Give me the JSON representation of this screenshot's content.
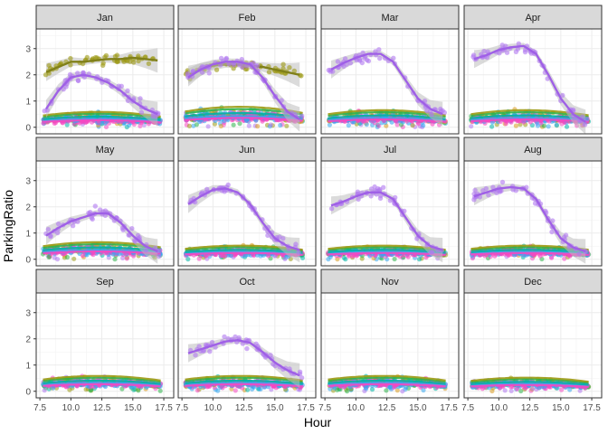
{
  "chart_data": {
    "type": "scatter",
    "subtype": "faceted scatter with loess smooth lines",
    "xlabel": "Hour",
    "ylabel": "ParkingRatio",
    "xlim": [
      7.2,
      18.3
    ],
    "ylim": [
      -0.25,
      3.75
    ],
    "x_ticks": [
      7.5,
      10.0,
      12.5,
      15.0,
      17.5
    ],
    "x_tick_labels": [
      "7.5",
      "10.0",
      "12.5",
      "15.0",
      "17.5"
    ],
    "y_ticks": [
      0,
      1,
      2,
      3
    ],
    "y_tick_labels": [
      "0",
      "1",
      "2",
      "3"
    ],
    "grid": true,
    "facets": [
      {
        "label": "Jan",
        "high": [
          {
            "series": "olive",
            "points": [
              [
                8,
                2.1
              ],
              [
                9,
                2.3
              ],
              [
                10,
                2.5
              ],
              [
                11,
                2.5
              ],
              [
                12,
                2.55
              ],
              [
                13,
                2.6
              ],
              [
                14,
                2.6
              ],
              [
                15,
                2.65
              ],
              [
                16,
                2.6
              ],
              [
                17,
                2.55
              ]
            ]
          },
          {
            "series": "purple",
            "points": [
              [
                8,
                0.7
              ],
              [
                9,
                1.4
              ],
              [
                10,
                1.9
              ],
              [
                11,
                2.0
              ],
              [
                12,
                1.9
              ],
              [
                13,
                1.7
              ],
              [
                14,
                1.4
              ],
              [
                15,
                1.0
              ],
              [
                16,
                0.7
              ],
              [
                17,
                0.5
              ]
            ]
          }
        ],
        "base_level": 0.45
      },
      {
        "label": "Feb",
        "high": [
          {
            "series": "olive",
            "points": [
              [
                8,
                2.0
              ],
              [
                9,
                2.2
              ],
              [
                10,
                2.35
              ],
              [
                11,
                2.4
              ],
              [
                12,
                2.4
              ],
              [
                13,
                2.35
              ],
              [
                14,
                2.3
              ],
              [
                15,
                2.2
              ],
              [
                16,
                2.1
              ],
              [
                17,
                2.0
              ]
            ]
          },
          {
            "series": "purple",
            "points": [
              [
                8,
                1.9
              ],
              [
                9,
                2.2
              ],
              [
                10,
                2.4
              ],
              [
                11,
                2.5
              ],
              [
                12,
                2.5
              ],
              [
                13,
                2.4
              ],
              [
                14,
                1.9
              ],
              [
                15,
                1.2
              ],
              [
                16,
                0.6
              ],
              [
                17,
                0.3
              ]
            ]
          }
        ],
        "base_level": 0.6
      },
      {
        "label": "Mar",
        "high": [
          {
            "series": "purple",
            "points": [
              [
                8,
                2.2
              ],
              [
                9,
                2.45
              ],
              [
                10,
                2.65
              ],
              [
                11,
                2.8
              ],
              [
                12,
                2.8
              ],
              [
                13,
                2.5
              ],
              [
                14,
                1.8
              ],
              [
                15,
                1.1
              ],
              [
                16,
                0.7
              ],
              [
                17,
                0.5
              ]
            ]
          }
        ],
        "base_level": 0.5
      },
      {
        "label": "Apr",
        "high": [
          {
            "series": "purple",
            "points": [
              [
                8,
                2.6
              ],
              [
                9,
                2.75
              ],
              [
                10,
                2.95
              ],
              [
                11,
                3.05
              ],
              [
                12,
                3.1
              ],
              [
                13,
                2.8
              ],
              [
                14,
                2.0
              ],
              [
                15,
                1.1
              ],
              [
                16,
                0.5
              ],
              [
                17,
                0.2
              ]
            ]
          }
        ],
        "base_level": 0.5
      },
      {
        "label": "May",
        "high": [
          {
            "series": "purple",
            "points": [
              [
                8,
                0.9
              ],
              [
                9,
                1.2
              ],
              [
                10,
                1.45
              ],
              [
                11,
                1.6
              ],
              [
                12,
                1.75
              ],
              [
                13,
                1.75
              ],
              [
                14,
                1.4
              ],
              [
                15,
                0.9
              ],
              [
                16,
                0.5
              ],
              [
                17,
                0.3
              ]
            ]
          }
        ],
        "base_level": 0.5
      },
      {
        "label": "Jun",
        "high": [
          {
            "series": "purple",
            "points": [
              [
                8,
                2.1
              ],
              [
                9,
                2.4
              ],
              [
                10,
                2.65
              ],
              [
                11,
                2.7
              ],
              [
                12,
                2.55
              ],
              [
                13,
                2.1
              ],
              [
                14,
                1.4
              ],
              [
                15,
                0.8
              ],
              [
                16,
                0.5
              ],
              [
                17,
                0.35
              ]
            ]
          }
        ],
        "base_level": 0.4
      },
      {
        "label": "Jul",
        "high": [
          {
            "series": "purple",
            "points": [
              [
                8,
                2.05
              ],
              [
                9,
                2.2
              ],
              [
                10,
                2.4
              ],
              [
                11,
                2.55
              ],
              [
                12,
                2.55
              ],
              [
                13,
                2.3
              ],
              [
                14,
                1.6
              ],
              [
                15,
                0.9
              ],
              [
                16,
                0.5
              ],
              [
                17,
                0.35
              ]
            ]
          }
        ],
        "base_level": 0.4
      },
      {
        "label": "Aug",
        "high": [
          {
            "series": "purple",
            "points": [
              [
                8,
                2.4
              ],
              [
                9,
                2.55
              ],
              [
                10,
                2.7
              ],
              [
                11,
                2.75
              ],
              [
                12,
                2.7
              ],
              [
                13,
                2.3
              ],
              [
                14,
                1.5
              ],
              [
                15,
                0.8
              ],
              [
                16,
                0.45
              ],
              [
                17,
                0.3
              ]
            ]
          }
        ],
        "base_level": 0.4
      },
      {
        "label": "Sep",
        "high": [],
        "base_level": 0.45
      },
      {
        "label": "Oct",
        "high": [
          {
            "series": "purple",
            "points": [
              [
                8,
                1.45
              ],
              [
                9,
                1.6
              ],
              [
                10,
                1.75
              ],
              [
                11,
                1.9
              ],
              [
                12,
                1.95
              ],
              [
                13,
                1.85
              ],
              [
                14,
                1.5
              ],
              [
                15,
                1.1
              ],
              [
                16,
                0.8
              ],
              [
                17,
                0.6
              ]
            ]
          }
        ],
        "base_level": 0.45
      },
      {
        "label": "Nov",
        "high": [],
        "base_level": 0.45
      },
      {
        "label": "Dec",
        "high": [],
        "base_level": 0.4
      }
    ],
    "colors": {
      "olive": "#9c9a14",
      "purple": "#b078f0",
      "purple_line": "#9f60e6",
      "olive_line": "#80801a",
      "green": "#2db34a",
      "teal": "#00b4a6",
      "blue": "#35a7f0",
      "pink": "#f548c2",
      "orange": "#d99a20",
      "ribbon": "#bdbdbd",
      "panel_border": "#333333",
      "strip_fill": "#d9d9d9",
      "grid": "#ebebeb",
      "text": "#4d4d4d",
      "axis_title": "#000000"
    }
  }
}
